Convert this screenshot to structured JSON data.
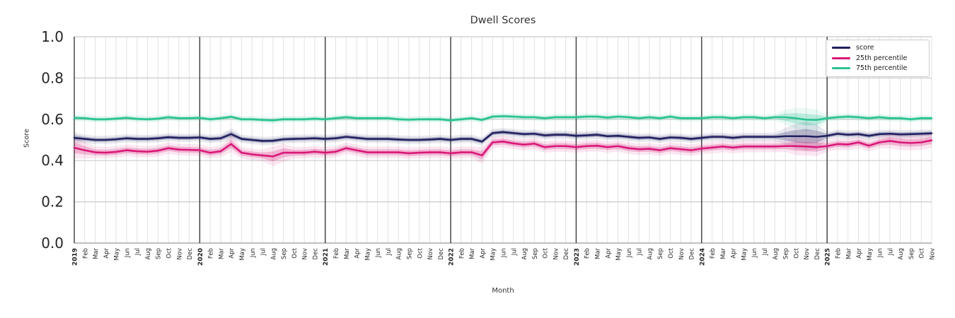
{
  "chart": {
    "title": "Dwell Scores",
    "xlabel": "Month",
    "ylabel": "Score"
  },
  "chart_data": {
    "type": "line",
    "title": "Dwell Scores",
    "xlabel": "Month",
    "ylabel": "Score",
    "ylim": [
      0.0,
      1.0
    ],
    "ytick_labels": [
      "0.0",
      "0.2",
      "0.4",
      "0.6",
      "0.8",
      "1.0"
    ],
    "grid": true,
    "legend_position": "upper right",
    "x_categories": [
      "2019",
      "Feb",
      "Mar",
      "Apr",
      "May",
      "Jun",
      "Jul",
      "Aug",
      "Sep",
      "Oct",
      "Nov",
      "Dec",
      "2020",
      "Feb",
      "Mar",
      "Apr",
      "May",
      "Jun",
      "Jul",
      "Aug",
      "Sep",
      "Oct",
      "Nov",
      "Dec",
      "2021",
      "Feb",
      "Mar",
      "Apr",
      "May",
      "Jun",
      "Jul",
      "Aug",
      "Sep",
      "Oct",
      "Nov",
      "Dec",
      "2022",
      "Feb",
      "Mar",
      "Apr",
      "May",
      "Jun",
      "Jul",
      "Aug",
      "Sep",
      "Oct",
      "Nov",
      "Dec",
      "2023",
      "Feb",
      "Mar",
      "Apr",
      "May",
      "Jun",
      "Jul",
      "Aug",
      "Sep",
      "Oct",
      "Nov",
      "Dec",
      "2024",
      "Feb",
      "Mar",
      "Apr",
      "May",
      "Jun",
      "Jul",
      "Aug",
      "Sep",
      "Oct",
      "Nov",
      "Dec",
      "2025",
      "Feb",
      "Mar",
      "Apr",
      "May",
      "Jun",
      "Jul",
      "Aug",
      "Sep",
      "Oct",
      "Nov"
    ],
    "year_tick_indices": [
      0,
      12,
      24,
      36,
      48,
      60,
      72
    ],
    "series": [
      {
        "name": "score",
        "color": "#212060",
        "values": [
          0.51,
          0.505,
          0.5,
          0.5,
          0.503,
          0.508,
          0.505,
          0.505,
          0.508,
          0.513,
          0.51,
          0.51,
          0.512,
          0.505,
          0.508,
          0.528,
          0.505,
          0.5,
          0.495,
          0.496,
          0.503,
          0.505,
          0.506,
          0.508,
          0.505,
          0.508,
          0.515,
          0.51,
          0.505,
          0.505,
          0.505,
          0.502,
          0.5,
          0.5,
          0.502,
          0.505,
          0.5,
          0.505,
          0.505,
          0.492,
          0.533,
          0.538,
          0.533,
          0.528,
          0.53,
          0.522,
          0.525,
          0.525,
          0.52,
          0.522,
          0.525,
          0.518,
          0.52,
          0.515,
          0.51,
          0.512,
          0.505,
          0.512,
          0.51,
          0.505,
          0.51,
          0.515,
          0.515,
          0.51,
          0.515,
          0.515,
          0.515,
          0.515,
          0.518,
          0.518,
          0.518,
          0.515,
          0.52,
          0.53,
          0.525,
          0.528,
          0.52,
          0.528,
          0.53,
          0.527,
          0.528,
          0.53,
          0.532
        ],
        "band": {
          "default": 0.01,
          "overrides": {
            "0": 0.014,
            "15": 0.014,
            "68": 0.02,
            "69": 0.03,
            "70": 0.035,
            "71": 0.03
          }
        }
      },
      {
        "name": "25th percentile",
        "color": "#d91879",
        "values": [
          0.462,
          0.45,
          0.44,
          0.438,
          0.442,
          0.45,
          0.445,
          0.443,
          0.448,
          0.46,
          0.453,
          0.452,
          0.45,
          0.438,
          0.445,
          0.48,
          0.438,
          0.43,
          0.425,
          0.42,
          0.438,
          0.438,
          0.438,
          0.443,
          0.438,
          0.443,
          0.46,
          0.45,
          0.44,
          0.44,
          0.44,
          0.44,
          0.435,
          0.438,
          0.44,
          0.44,
          0.435,
          0.44,
          0.44,
          0.425,
          0.488,
          0.492,
          0.483,
          0.477,
          0.482,
          0.465,
          0.47,
          0.47,
          0.465,
          0.47,
          0.472,
          0.465,
          0.47,
          0.46,
          0.455,
          0.457,
          0.45,
          0.46,
          0.455,
          0.45,
          0.458,
          0.463,
          0.468,
          0.463,
          0.468,
          0.468,
          0.468,
          0.468,
          0.47,
          0.47,
          0.468,
          0.465,
          0.47,
          0.48,
          0.478,
          0.488,
          0.472,
          0.488,
          0.495,
          0.488,
          0.485,
          0.488,
          0.498
        ],
        "band": {
          "default": 0.014,
          "overrides": {
            "0": 0.026,
            "1": 0.02,
            "15": 0.02,
            "19": 0.024,
            "20": 0.022,
            "39": 0.02,
            "69": 0.022,
            "70": 0.022,
            "71": 0.022,
            "78": 0.018,
            "79": 0.018,
            "80": 0.018,
            "81": 0.018,
            "82": 0.018
          }
        }
      },
      {
        "name": "75th percentile",
        "color": "#2bc292",
        "values": [
          0.607,
          0.605,
          0.6,
          0.6,
          0.603,
          0.607,
          0.602,
          0.6,
          0.603,
          0.61,
          0.605,
          0.605,
          0.607,
          0.6,
          0.605,
          0.612,
          0.6,
          0.6,
          0.597,
          0.595,
          0.6,
          0.6,
          0.6,
          0.603,
          0.6,
          0.605,
          0.61,
          0.605,
          0.605,
          0.605,
          0.605,
          0.6,
          0.598,
          0.6,
          0.6,
          0.6,
          0.595,
          0.6,
          0.605,
          0.597,
          0.613,
          0.615,
          0.613,
          0.61,
          0.61,
          0.605,
          0.61,
          0.61,
          0.61,
          0.613,
          0.613,
          0.608,
          0.613,
          0.61,
          0.605,
          0.61,
          0.605,
          0.613,
          0.605,
          0.605,
          0.605,
          0.61,
          0.61,
          0.605,
          0.61,
          0.61,
          0.605,
          0.61,
          0.61,
          0.605,
          0.598,
          0.597,
          0.605,
          0.61,
          0.613,
          0.61,
          0.605,
          0.61,
          0.605,
          0.605,
          0.6,
          0.605,
          0.605
        ],
        "band": {
          "default": 0.008,
          "overrides": {
            "68": 0.018,
            "69": 0.025,
            "70": 0.028,
            "71": 0.025
          }
        }
      }
    ]
  },
  "style_colors": {
    "minor_grid": "#e2e2e2",
    "major_grid": "#cbcbcb",
    "year_line": "#3a3a3a",
    "baseline": "#c2c2c2",
    "tick_text": "#262626"
  }
}
